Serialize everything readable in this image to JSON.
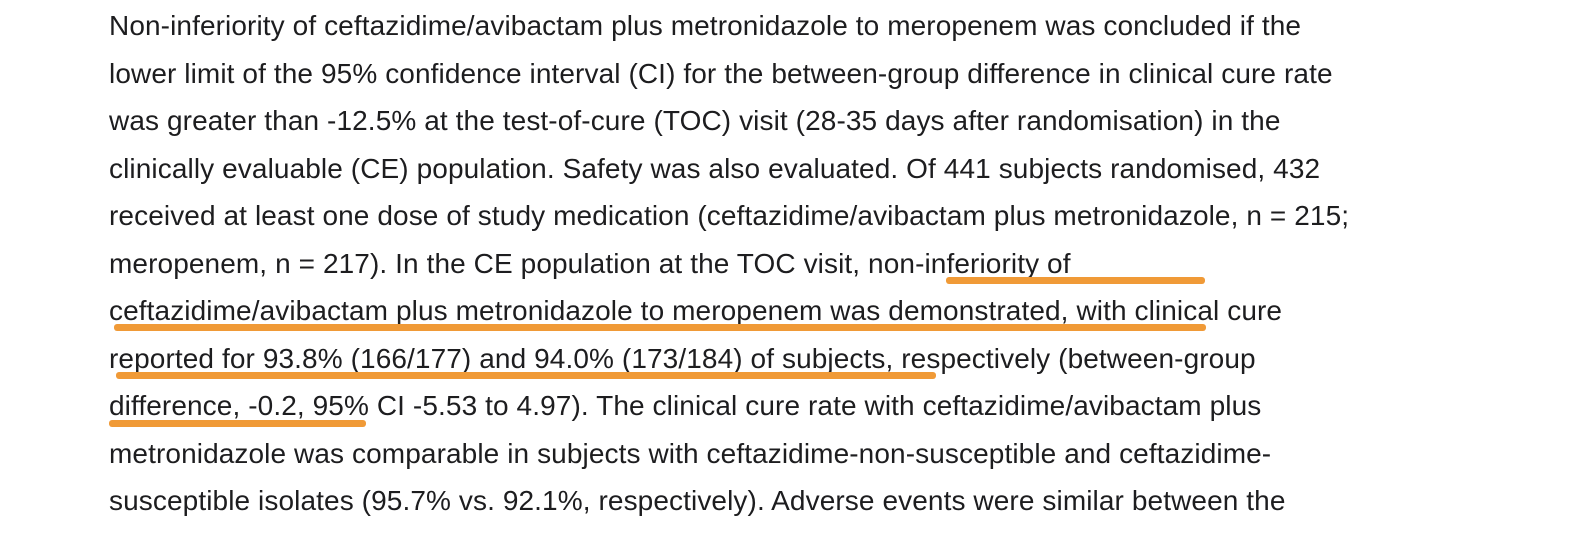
{
  "article": {
    "lines": [
      "Non-inferiority of ceftazidime/avibactam plus metronidazole to meropenem was concluded if the",
      "lower limit of the 95% confidence interval (CI) for the between-group difference in clinical cure rate",
      "was greater than -12.5% at the test-of-cure (TOC) visit (28-35 days after randomisation) in the",
      "clinically evaluable (CE) population. Safety was also evaluated. Of 441 subjects randomised, 432",
      "received at least one dose of study medication (ceftazidime/avibactam plus metronidazole, n = 215;",
      "meropenem, n = 217). In the CE population at the TOC visit, non-inferiority of",
      "ceftazidime/avibactam plus metronidazole to meropenem was demonstrated, with clinical cure",
      "reported for 93.8% (166/177) and 94.0% (173/184) of subjects, respectively (between-group",
      "difference, -0.2, 95% CI -5.53 to 4.97). The clinical cure rate with ceftazidime/avibactam plus",
      "metronidazole was comparable in subjects with ceftazidime-non-susceptible and ceftazidime-",
      "susceptible isolates (95.7% vs. 92.1%, respectively). Adverse events were similar between the"
    ],
    "highlight_color": "#f09a37"
  }
}
